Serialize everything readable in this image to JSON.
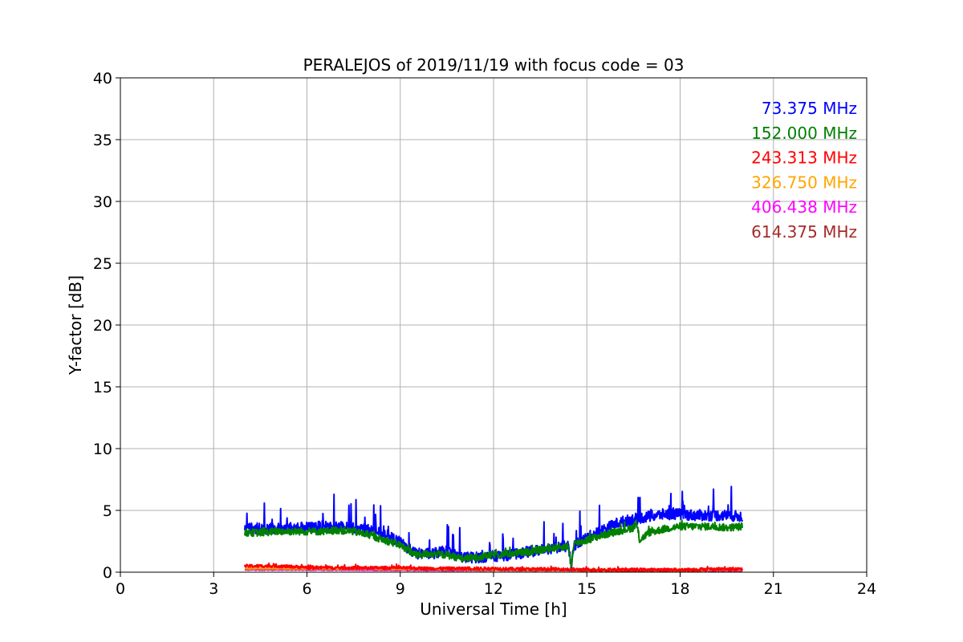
{
  "chart_data": {
    "type": "line",
    "title": "PERALEJOS of 2019/11/19 with focus code = 03",
    "xlabel": "Universal Time [h]",
    "ylabel": "Y-factor [dB]",
    "xlim": [
      0,
      24
    ],
    "ylim": [
      0,
      40
    ],
    "xticks": [
      0,
      3,
      6,
      9,
      12,
      15,
      18,
      21,
      24
    ],
    "yticks": [
      0,
      5,
      10,
      15,
      20,
      25,
      30,
      35,
      40
    ],
    "grid": true,
    "legend_placement": "top-right",
    "series": [
      {
        "name": "73.375 MHz",
        "color": "#0000ff",
        "x": [
          4,
          4.5,
          5,
          5.5,
          6,
          6.5,
          7,
          7.5,
          8,
          8.5,
          9,
          9.2,
          9.5,
          10,
          10.5,
          11,
          11.5,
          12,
          12.5,
          13,
          13.5,
          14,
          14.4,
          14.5,
          14.6,
          15,
          15.5,
          16,
          16.5,
          17,
          17.5,
          18,
          18.5,
          19,
          19.5,
          20
        ],
        "y": [
          3.6,
          3.5,
          3.5,
          3.6,
          3.6,
          3.7,
          3.7,
          3.6,
          3.4,
          3.1,
          2.4,
          2.0,
          1.5,
          1.5,
          1.7,
          1.2,
          1.2,
          1.3,
          1.4,
          1.6,
          1.8,
          2.0,
          2.1,
          0.5,
          2.2,
          2.8,
          3.4,
          4.0,
          4.3,
          4.5,
          4.7,
          4.7,
          4.6,
          4.6,
          4.6,
          4.5
        ]
      },
      {
        "name": "152.000 MHz",
        "color": "#008000",
        "x": [
          4,
          4.5,
          5,
          5.5,
          6,
          6.5,
          7,
          7.5,
          8,
          8.5,
          9,
          9.5,
          10,
          10.5,
          11,
          11.5,
          12,
          12.5,
          13,
          13.5,
          14,
          14.4,
          14.5,
          14.6,
          15,
          15.5,
          16,
          16.5,
          16.6,
          16.7,
          17,
          17.5,
          18,
          18.5,
          19,
          19.5,
          20
        ],
        "y": [
          3.2,
          3.2,
          3.3,
          3.3,
          3.3,
          3.3,
          3.4,
          3.3,
          3.0,
          2.6,
          2.2,
          1.4,
          1.5,
          1.4,
          1.1,
          1.2,
          1.4,
          1.5,
          1.6,
          1.8,
          2.0,
          2.1,
          0.6,
          2.3,
          2.6,
          3.0,
          3.3,
          3.6,
          3.9,
          2.6,
          3.2,
          3.5,
          3.7,
          3.7,
          3.7,
          3.6,
          3.7
        ]
      },
      {
        "name": "243.313 MHz",
        "color": "#ff0000",
        "x": [
          4,
          5,
          6,
          7,
          8,
          9,
          10,
          11,
          12,
          13,
          14,
          15,
          16,
          17,
          18,
          19,
          20
        ],
        "y": [
          0.5,
          0.5,
          0.4,
          0.35,
          0.35,
          0.35,
          0.3,
          0.3,
          0.3,
          0.25,
          0.25,
          0.2,
          0.2,
          0.2,
          0.2,
          0.25,
          0.25
        ]
      },
      {
        "name": "326.750 MHz",
        "color": "#ffa500",
        "x": [
          4,
          6,
          8,
          10,
          12,
          14,
          16,
          18,
          20
        ],
        "y": [
          0.3,
          0.3,
          0.28,
          0.25,
          0.22,
          0.2,
          0.2,
          0.2,
          0.2
        ]
      },
      {
        "name": "406.438 MHz",
        "color": "#ff00ff",
        "x": [
          4,
          6,
          8,
          10,
          12,
          14,
          16,
          18,
          20
        ],
        "y": [
          0.25,
          0.25,
          0.22,
          0.2,
          0.2,
          0.2,
          0.18,
          0.18,
          0.15
        ]
      },
      {
        "name": "614.375 MHz",
        "color": "#a52a2a",
        "x": [
          4,
          6,
          8,
          10,
          12,
          14,
          16,
          18,
          20
        ],
        "y": [
          0.2,
          0.2,
          0.18,
          0.15,
          0.15,
          0.15,
          0.12,
          0.12,
          0.1
        ]
      }
    ]
  }
}
